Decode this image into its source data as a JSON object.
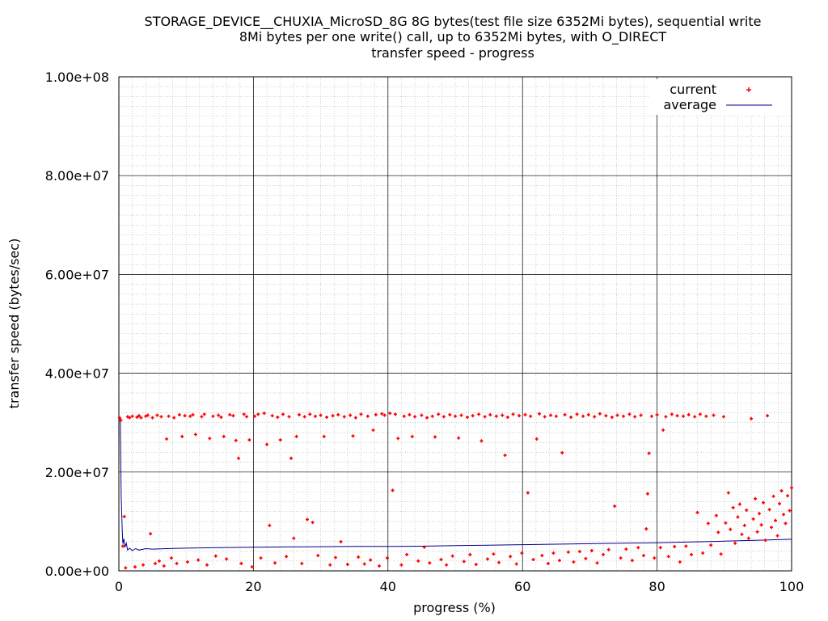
{
  "chart_data": {
    "type": "scatter",
    "title_lines": [
      "STORAGE_DEVICE__CHUXIA_MicroSD_8G 8G bytes(test file size 6352Mi bytes), sequential write",
      "8Mi bytes per one write() call, up to 6352Mi bytes, with O_DIRECT",
      "transfer speed - progress"
    ],
    "xlabel": "progress (%)",
    "ylabel": "transfer speed (bytes/sec)",
    "xlim": [
      0,
      100
    ],
    "ylim": [
      0,
      100000000
    ],
    "x_ticks": [
      0,
      20,
      40,
      60,
      80,
      100
    ],
    "x_tick_labels": [
      "0",
      "20",
      "40",
      "60",
      "80",
      "100"
    ],
    "y_ticks": [
      0,
      20000000,
      40000000,
      60000000,
      80000000,
      100000000
    ],
    "y_tick_labels": [
      "0.00e+00",
      "2.00e+07",
      "4.00e+07",
      "6.00e+07",
      "8.00e+07",
      "1.00e+08"
    ],
    "grid": true,
    "legend_position": "top-right",
    "series": [
      {
        "name": "current",
        "style": "points",
        "color": "#ff0000",
        "points": [
          [
            0.1,
            31000000
          ],
          [
            0.3,
            30500000
          ],
          [
            0.6,
            5000000
          ],
          [
            0.8,
            11000000
          ],
          [
            1.0,
            600000
          ],
          [
            1.3,
            31200000
          ],
          [
            1.6,
            31000000
          ],
          [
            2.0,
            31300000
          ],
          [
            2.4,
            800000
          ],
          [
            2.7,
            31100000
          ],
          [
            3.0,
            31400000
          ],
          [
            3.3,
            31000000
          ],
          [
            3.6,
            1200000
          ],
          [
            4.0,
            31300000
          ],
          [
            4.3,
            31500000
          ],
          [
            4.7,
            7500000
          ],
          [
            5.0,
            31000000
          ],
          [
            5.4,
            1500000
          ],
          [
            5.7,
            31500000
          ],
          [
            6.0,
            2000000
          ],
          [
            6.3,
            31200000
          ],
          [
            6.7,
            1000000
          ],
          [
            7.1,
            26700000
          ],
          [
            7.4,
            31300000
          ],
          [
            7.8,
            2600000
          ],
          [
            8.2,
            31000000
          ],
          [
            8.6,
            1500000
          ],
          [
            9.0,
            31600000
          ],
          [
            9.4,
            27200000
          ],
          [
            9.8,
            31400000
          ],
          [
            10.2,
            1800000
          ],
          [
            10.6,
            31300000
          ],
          [
            11.0,
            31600000
          ],
          [
            11.4,
            27600000
          ],
          [
            11.8,
            2200000
          ],
          [
            12.3,
            31200000
          ],
          [
            12.7,
            31700000
          ],
          [
            13.1,
            1200000
          ],
          [
            13.5,
            26800000
          ],
          [
            14.0,
            31300000
          ],
          [
            14.4,
            3000000
          ],
          [
            14.8,
            31500000
          ],
          [
            15.2,
            31100000
          ],
          [
            15.6,
            27200000
          ],
          [
            16.0,
            2400000
          ],
          [
            16.5,
            31600000
          ],
          [
            17.0,
            31400000
          ],
          [
            17.4,
            26400000
          ],
          [
            17.8,
            22800000
          ],
          [
            18.2,
            1500000
          ],
          [
            18.6,
            31700000
          ],
          [
            19.0,
            31200000
          ],
          [
            19.4,
            26500000
          ],
          [
            19.8,
            800000
          ],
          [
            20.2,
            31300000
          ],
          [
            20.7,
            31700000
          ],
          [
            21.1,
            2600000
          ],
          [
            21.6,
            31900000
          ],
          [
            22.0,
            25600000
          ],
          [
            22.4,
            9200000
          ],
          [
            22.8,
            31400000
          ],
          [
            23.2,
            1600000
          ],
          [
            23.6,
            31100000
          ],
          [
            24.0,
            26500000
          ],
          [
            24.4,
            31700000
          ],
          [
            24.9,
            2900000
          ],
          [
            25.3,
            31200000
          ],
          [
            25.6,
            22800000
          ],
          [
            26.0,
            6600000
          ],
          [
            26.4,
            27200000
          ],
          [
            26.8,
            31600000
          ],
          [
            27.2,
            1500000
          ],
          [
            27.6,
            31200000
          ],
          [
            28.0,
            10400000
          ],
          [
            28.4,
            31700000
          ],
          [
            28.8,
            9800000
          ],
          [
            29.2,
            31300000
          ],
          [
            29.6,
            3100000
          ],
          [
            30.0,
            31500000
          ],
          [
            30.5,
            27200000
          ],
          [
            30.9,
            31100000
          ],
          [
            31.4,
            1200000
          ],
          [
            31.8,
            31400000
          ],
          [
            32.2,
            2700000
          ],
          [
            32.6,
            31600000
          ],
          [
            33.0,
            5900000
          ],
          [
            33.5,
            31200000
          ],
          [
            34.0,
            1300000
          ],
          [
            34.4,
            31500000
          ],
          [
            34.8,
            27300000
          ],
          [
            35.2,
            31000000
          ],
          [
            35.6,
            2800000
          ],
          [
            36.0,
            31700000
          ],
          [
            36.5,
            1400000
          ],
          [
            37.0,
            31300000
          ],
          [
            37.4,
            2200000
          ],
          [
            37.8,
            28500000
          ],
          [
            38.2,
            31600000
          ],
          [
            38.7,
            1000000
          ],
          [
            39.1,
            31800000
          ],
          [
            39.5,
            31500000
          ],
          [
            39.9,
            2600000
          ],
          [
            40.3,
            31900000
          ],
          [
            40.7,
            16300000
          ],
          [
            41.1,
            31700000
          ],
          [
            41.5,
            26800000
          ],
          [
            42.0,
            1200000
          ],
          [
            42.4,
            31300000
          ],
          [
            42.8,
            3300000
          ],
          [
            43.2,
            31600000
          ],
          [
            43.6,
            27200000
          ],
          [
            44.0,
            31200000
          ],
          [
            44.5,
            2000000
          ],
          [
            45.0,
            31500000
          ],
          [
            45.4,
            4800000
          ],
          [
            45.8,
            31000000
          ],
          [
            46.2,
            1600000
          ],
          [
            46.6,
            31300000
          ],
          [
            47.0,
            27100000
          ],
          [
            47.5,
            31700000
          ],
          [
            47.9,
            2300000
          ],
          [
            48.3,
            31200000
          ],
          [
            48.7,
            1200000
          ],
          [
            49.2,
            31600000
          ],
          [
            49.6,
            3000000
          ],
          [
            50.0,
            31300000
          ],
          [
            50.5,
            26900000
          ],
          [
            50.9,
            31500000
          ],
          [
            51.3,
            1900000
          ],
          [
            51.8,
            31100000
          ],
          [
            52.2,
            3300000
          ],
          [
            52.6,
            31400000
          ],
          [
            53.1,
            1300000
          ],
          [
            53.5,
            31700000
          ],
          [
            53.9,
            26300000
          ],
          [
            54.4,
            31200000
          ],
          [
            54.8,
            2400000
          ],
          [
            55.2,
            31600000
          ],
          [
            55.7,
            3400000
          ],
          [
            56.1,
            31300000
          ],
          [
            56.5,
            1700000
          ],
          [
            57.0,
            31500000
          ],
          [
            57.4,
            23400000
          ],
          [
            57.8,
            31100000
          ],
          [
            58.2,
            2900000
          ],
          [
            58.6,
            31700000
          ],
          [
            59.1,
            1400000
          ],
          [
            59.5,
            31400000
          ],
          [
            59.9,
            3600000
          ],
          [
            60.4,
            31600000
          ],
          [
            60.8,
            15800000
          ],
          [
            61.2,
            31300000
          ],
          [
            61.6,
            2300000
          ],
          [
            62.1,
            26700000
          ],
          [
            62.5,
            31800000
          ],
          [
            62.9,
            3100000
          ],
          [
            63.3,
            31200000
          ],
          [
            63.8,
            1500000
          ],
          [
            64.2,
            31500000
          ],
          [
            64.6,
            3600000
          ],
          [
            65.0,
            31300000
          ],
          [
            65.5,
            2100000
          ],
          [
            65.9,
            23900000
          ],
          [
            66.3,
            31600000
          ],
          [
            66.8,
            3800000
          ],
          [
            67.2,
            31100000
          ],
          [
            67.6,
            1800000
          ],
          [
            68.1,
            31700000
          ],
          [
            68.5,
            3900000
          ],
          [
            69.0,
            31300000
          ],
          [
            69.4,
            2500000
          ],
          [
            69.8,
            31600000
          ],
          [
            70.3,
            4100000
          ],
          [
            70.7,
            31200000
          ],
          [
            71.1,
            1600000
          ],
          [
            71.5,
            31800000
          ],
          [
            72.0,
            3300000
          ],
          [
            72.4,
            31400000
          ],
          [
            72.8,
            4300000
          ],
          [
            73.3,
            31100000
          ],
          [
            73.7,
            13100000
          ],
          [
            74.1,
            31500000
          ],
          [
            74.6,
            2600000
          ],
          [
            75.0,
            31300000
          ],
          [
            75.4,
            4400000
          ],
          [
            75.9,
            31700000
          ],
          [
            76.3,
            2100000
          ],
          [
            76.7,
            31200000
          ],
          [
            77.2,
            4700000
          ],
          [
            77.6,
            31500000
          ],
          [
            78.0,
            3100000
          ],
          [
            78.4,
            8500000
          ],
          [
            78.6,
            15600000
          ],
          [
            78.8,
            23800000
          ],
          [
            79.2,
            31300000
          ],
          [
            79.6,
            2600000
          ],
          [
            80.0,
            31600000
          ],
          [
            80.5,
            4700000
          ],
          [
            80.9,
            28500000
          ],
          [
            81.3,
            31200000
          ],
          [
            81.7,
            2900000
          ],
          [
            82.2,
            31700000
          ],
          [
            82.6,
            4900000
          ],
          [
            83.0,
            31400000
          ],
          [
            83.4,
            1800000
          ],
          [
            83.9,
            31300000
          ],
          [
            84.3,
            5000000
          ],
          [
            84.7,
            31600000
          ],
          [
            85.1,
            3300000
          ],
          [
            85.6,
            31200000
          ],
          [
            86.0,
            11800000
          ],
          [
            86.4,
            31700000
          ],
          [
            86.8,
            3600000
          ],
          [
            87.3,
            31300000
          ],
          [
            87.6,
            9600000
          ],
          [
            88.0,
            5200000
          ],
          [
            88.4,
            31500000
          ],
          [
            88.8,
            11200000
          ],
          [
            89.1,
            7800000
          ],
          [
            89.5,
            3400000
          ],
          [
            89.9,
            31200000
          ],
          [
            90.2,
            9700000
          ],
          [
            90.6,
            15800000
          ],
          [
            90.9,
            8400000
          ],
          [
            91.3,
            12800000
          ],
          [
            91.6,
            5600000
          ],
          [
            92.0,
            10900000
          ],
          [
            92.3,
            13500000
          ],
          [
            92.6,
            7400000
          ],
          [
            93.0,
            9200000
          ],
          [
            93.3,
            12300000
          ],
          [
            93.6,
            6600000
          ],
          [
            94.0,
            30800000
          ],
          [
            94.3,
            10500000
          ],
          [
            94.6,
            14600000
          ],
          [
            94.9,
            7900000
          ],
          [
            95.2,
            11600000
          ],
          [
            95.5,
            9300000
          ],
          [
            95.8,
            13800000
          ],
          [
            96.1,
            6200000
          ],
          [
            96.4,
            31400000
          ],
          [
            96.7,
            12400000
          ],
          [
            97.0,
            8800000
          ],
          [
            97.3,
            15100000
          ],
          [
            97.6,
            10200000
          ],
          [
            97.9,
            7100000
          ],
          [
            98.2,
            13600000
          ],
          [
            98.5,
            16200000
          ],
          [
            98.8,
            11400000
          ],
          [
            99.1,
            9600000
          ],
          [
            99.4,
            15200000
          ],
          [
            99.7,
            12200000
          ],
          [
            100.0,
            16800000
          ]
        ]
      },
      {
        "name": "average",
        "style": "line",
        "color": "#00008b",
        "points": [
          [
            0,
            31000000
          ],
          [
            0.2,
            31000000
          ],
          [
            0.35,
            15000000
          ],
          [
            0.5,
            8000000
          ],
          [
            0.6,
            5500000
          ],
          [
            0.75,
            6500000
          ],
          [
            0.9,
            4800000
          ],
          [
            1.1,
            5600000
          ],
          [
            1.3,
            4200000
          ],
          [
            1.6,
            4600000
          ],
          [
            2.0,
            4100000
          ],
          [
            2.5,
            4500000
          ],
          [
            3.0,
            4200000
          ],
          [
            4.0,
            4500000
          ],
          [
            5.0,
            4400000
          ],
          [
            7.0,
            4500000
          ],
          [
            10.0,
            4600000
          ],
          [
            15.0,
            4700000
          ],
          [
            20.0,
            4800000
          ],
          [
            25.0,
            4850000
          ],
          [
            30.0,
            4900000
          ],
          [
            35.0,
            4950000
          ],
          [
            40.0,
            4950000
          ],
          [
            45.0,
            5000000
          ],
          [
            50.0,
            5100000
          ],
          [
            55.0,
            5200000
          ],
          [
            60.0,
            5300000
          ],
          [
            65.0,
            5400000
          ],
          [
            70.0,
            5500000
          ],
          [
            75.0,
            5600000
          ],
          [
            80.0,
            5700000
          ],
          [
            85.0,
            5850000
          ],
          [
            90.0,
            6000000
          ],
          [
            95.0,
            6200000
          ],
          [
            100.0,
            6400000
          ]
        ]
      }
    ]
  }
}
